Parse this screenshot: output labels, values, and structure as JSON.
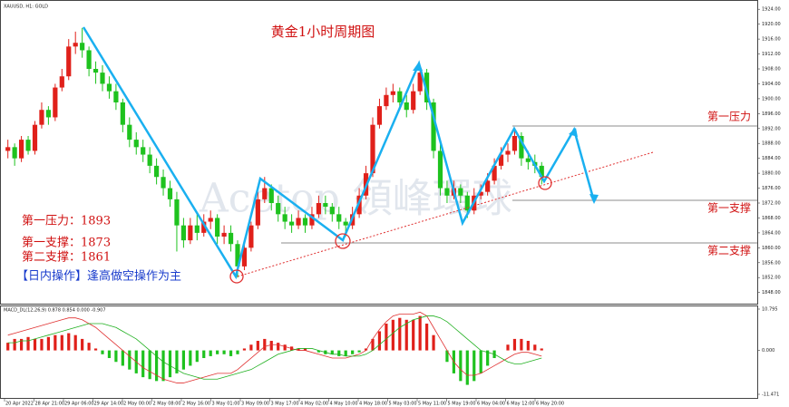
{
  "chart_data": {
    "type": "candlestick",
    "header": "XAUUSD, H1: GOLD",
    "title": "黄金1小时周期图",
    "notes": [
      "第一压力：1893",
      "第一支撑：1873",
      "第二支撑：1861"
    ],
    "strategy": "【日内操作】逢高做空操作为主",
    "level_labels": [
      "第一压力",
      "第一支撑",
      "第二支撑"
    ],
    "watermark": "Acetop 領峰環球",
    "up_color": "#e0201a",
    "down_color": "#1ec21e",
    "ylim": [
      1845,
      1926
    ],
    "yticks": [
      {
        "value": 1848,
        "label": "1848.00"
      },
      {
        "value": 1852,
        "label": "1852.00"
      },
      {
        "value": 1856,
        "label": "1856.00"
      },
      {
        "value": 1860,
        "label": "1860.00"
      },
      {
        "value": 1864,
        "label": "1864.00"
      },
      {
        "value": 1868,
        "label": "1868.00"
      },
      {
        "value": 1872,
        "label": "1872.00"
      },
      {
        "value": 1876,
        "label": "1876.00"
      },
      {
        "value": 1880,
        "label": "1880.00"
      },
      {
        "value": 1884,
        "label": "1884.00"
      },
      {
        "value": 1888,
        "label": "1888.00"
      },
      {
        "value": 1892,
        "label": "1892.00"
      },
      {
        "value": 1896,
        "label": "1896.00"
      },
      {
        "value": 1900,
        "label": "1900.00"
      },
      {
        "value": 1904,
        "label": "1904.00"
      },
      {
        "value": 1908,
        "label": "1908.00"
      },
      {
        "value": 1912,
        "label": "1912.00"
      },
      {
        "value": 1916,
        "label": "1916.00"
      },
      {
        "value": 1920,
        "label": "1920.00"
      },
      {
        "value": 1924,
        "label": "1924.00"
      }
    ],
    "xlabels": [
      "20 Apr 2022",
      "28 Apr 21:00",
      "29 Apr 06:00",
      "29 Apr 14:00",
      "2 May 00:00",
      "2 May 08:00",
      "2 May 16:00",
      "3 May 01:00",
      "3 May 09:00",
      "3 May 17:00",
      "4 May 02:00",
      "4 May 10:00",
      "4 May 18:00",
      "5 May 03:00",
      "5 May 11:00",
      "5 May 19:00",
      "6 May 04:00",
      "6 May 12:00",
      "6 May 20:00"
    ],
    "candles": [
      [
        1886,
        1889,
        1884,
        1887
      ],
      [
        1887,
        1888,
        1882,
        1884
      ],
      [
        1884,
        1890,
        1883,
        1889
      ],
      [
        1889,
        1890,
        1885,
        1886
      ],
      [
        1886,
        1894,
        1885,
        1893
      ],
      [
        1893,
        1899,
        1892,
        1897
      ],
      [
        1897,
        1898,
        1893,
        1895
      ],
      [
        1895,
        1904,
        1894,
        1903
      ],
      [
        1903,
        1908,
        1902,
        1906
      ],
      [
        1906,
        1916,
        1905,
        1914
      ],
      [
        1914,
        1918,
        1912,
        1915
      ],
      [
        1915,
        1919,
        1911,
        1913
      ],
      [
        1913,
        1914,
        1906,
        1908
      ],
      [
        1908,
        1910,
        1904,
        1907
      ],
      [
        1907,
        1909,
        1902,
        1904
      ],
      [
        1904,
        1906,
        1900,
        1902
      ],
      [
        1902,
        1904,
        1897,
        1899
      ],
      [
        1899,
        1900,
        1891,
        1893
      ],
      [
        1893,
        1895,
        1887,
        1889
      ],
      [
        1889,
        1891,
        1885,
        1887
      ],
      [
        1887,
        1889,
        1883,
        1885
      ],
      [
        1885,
        1887,
        1880,
        1882
      ],
      [
        1882,
        1884,
        1877,
        1879
      ],
      [
        1879,
        1881,
        1874,
        1876
      ],
      [
        1876,
        1878,
        1871,
        1873
      ],
      [
        1873,
        1875,
        1859,
        1866
      ],
      [
        1866,
        1868,
        1860,
        1862
      ],
      [
        1862,
        1868,
        1861,
        1866
      ],
      [
        1866,
        1869,
        1862,
        1864
      ],
      [
        1864,
        1869,
        1863,
        1867
      ],
      [
        1867,
        1870,
        1865,
        1868
      ],
      [
        1868,
        1869,
        1861,
        1863
      ],
      [
        1863,
        1866,
        1861,
        1864
      ],
      [
        1864,
        1866,
        1859,
        1861
      ],
      [
        1861,
        1862,
        1852,
        1855
      ],
      [
        1855,
        1861,
        1854,
        1860
      ],
      [
        1860,
        1867,
        1859,
        1866
      ],
      [
        1866,
        1875,
        1865,
        1873
      ],
      [
        1873,
        1879,
        1872,
        1876
      ],
      [
        1876,
        1877,
        1870,
        1872
      ],
      [
        1872,
        1874,
        1867,
        1869
      ],
      [
        1869,
        1871,
        1865,
        1867
      ],
      [
        1867,
        1869,
        1864,
        1866
      ],
      [
        1866,
        1870,
        1865,
        1868
      ],
      [
        1868,
        1869,
        1864,
        1866
      ],
      [
        1866,
        1871,
        1865,
        1869
      ],
      [
        1869,
        1874,
        1868,
        1872
      ],
      [
        1872,
        1874,
        1869,
        1871
      ],
      [
        1871,
        1872,
        1867,
        1869
      ],
      [
        1869,
        1871,
        1865,
        1867
      ],
      [
        1867,
        1868,
        1863,
        1866
      ],
      [
        1866,
        1871,
        1865,
        1869
      ],
      [
        1869,
        1876,
        1868,
        1874
      ],
      [
        1874,
        1882,
        1873,
        1880
      ],
      [
        1880,
        1895,
        1879,
        1893
      ],
      [
        1893,
        1900,
        1892,
        1898
      ],
      [
        1898,
        1903,
        1897,
        1901
      ],
      [
        1901,
        1904,
        1899,
        1902
      ],
      [
        1902,
        1903,
        1897,
        1899
      ],
      [
        1899,
        1901,
        1895,
        1897
      ],
      [
        1897,
        1904,
        1896,
        1902
      ],
      [
        1902,
        1909,
        1901,
        1907
      ],
      [
        1907,
        1908,
        1897,
        1899
      ],
      [
        1899,
        1900,
        1884,
        1886
      ],
      [
        1886,
        1888,
        1874,
        1876
      ],
      [
        1876,
        1878,
        1872,
        1874
      ],
      [
        1874,
        1878,
        1873,
        1876
      ],
      [
        1876,
        1877,
        1872,
        1874
      ],
      [
        1874,
        1875,
        1868,
        1870
      ],
      [
        1870,
        1876,
        1869,
        1874
      ],
      [
        1874,
        1877,
        1873,
        1875
      ],
      [
        1875,
        1880,
        1874,
        1878
      ],
      [
        1878,
        1884,
        1877,
        1882
      ],
      [
        1882,
        1887,
        1881,
        1885
      ],
      [
        1885,
        1888,
        1883,
        1886
      ],
      [
        1886,
        1892,
        1885,
        1890
      ],
      [
        1890,
        1891,
        1882,
        1884
      ],
      [
        1884,
        1886,
        1881,
        1883
      ],
      [
        1883,
        1885,
        1880,
        1882
      ],
      [
        1882,
        1883,
        1877,
        1879
      ]
    ],
    "macd": {
      "label": "MACD_DL(12,26,9) 0.878 0.854 0.000 -0.907",
      "ylim": [
        -11.471,
        10.795
      ],
      "yticks": [
        {
          "value": 10.795,
          "label": "10.795"
        },
        {
          "value": 0,
          "label": "0.000"
        },
        {
          "value": -11.471,
          "label": "-11.471"
        }
      ],
      "histogram": [
        2,
        3,
        3,
        3.5,
        3,
        3,
        3.5,
        4,
        4,
        4.5,
        4,
        3,
        2,
        0.5,
        -1,
        -2,
        -3,
        -4,
        -5,
        -6,
        -7,
        -7.5,
        -8,
        -8,
        -7,
        -6,
        -5,
        -4,
        -3,
        -2,
        -1.5,
        -1,
        -1,
        -1.5,
        -1,
        0.5,
        1.5,
        2.5,
        3,
        2.5,
        2,
        1.5,
        1,
        0.5,
        0.5,
        0,
        -0.5,
        -1,
        -1,
        -1.5,
        -1.5,
        -1,
        -0.5,
        0.5,
        3,
        5,
        7,
        8,
        8.5,
        8,
        8,
        9,
        7,
        4,
        0,
        -3,
        -6,
        -8,
        -9,
        -8,
        -6,
        -4,
        -2,
        0,
        1.5,
        3,
        3,
        2.5,
        1.5,
        0.5
      ],
      "series": [
        {
          "name": "MACD",
          "color": "#e03030",
          "values": [
            4,
            4.5,
            5,
            5.5,
            6,
            6.5,
            7,
            7.5,
            8,
            8.5,
            8.5,
            8,
            7,
            6,
            4.5,
            3,
            1.5,
            0,
            -1.5,
            -3,
            -4.5,
            -5.5,
            -6.5,
            -7.5,
            -8,
            -8.5,
            -8.5,
            -8,
            -7.5,
            -7,
            -6.5,
            -6,
            -6,
            -6,
            -5,
            -3.5,
            -2,
            -0.5,
            1,
            1.5,
            1.5,
            1,
            0.5,
            0,
            0,
            -0.5,
            -1,
            -1.5,
            -2,
            -2,
            -2,
            -1.5,
            -1,
            0,
            3,
            5.5,
            7.5,
            9,
            9.5,
            9.5,
            9.5,
            10,
            9,
            6,
            3,
            0,
            -3,
            -5,
            -6.5,
            -6.5,
            -6,
            -5,
            -4,
            -3,
            -2,
            -1,
            -0.5,
            -0.5,
            -1,
            -1.5
          ]
        },
        {
          "name": "Signal",
          "color": "#20b020",
          "values": [
            2,
            2,
            2.5,
            2.5,
            3,
            3.5,
            4,
            4.5,
            5,
            5.5,
            6,
            6.5,
            7,
            7,
            7,
            6.5,
            6,
            5,
            4,
            3,
            1.5,
            0,
            -1.5,
            -3,
            -4,
            -5,
            -6,
            -6.5,
            -7,
            -7.5,
            -7.5,
            -7.5,
            -7,
            -6.5,
            -6,
            -5.5,
            -5,
            -4,
            -3,
            -2,
            -1,
            -0.5,
            0,
            0.5,
            0.5,
            0.5,
            0,
            -0.5,
            -1,
            -1,
            -1.5,
            -1.5,
            -1.5,
            -1,
            0,
            1.5,
            3,
            4.5,
            6,
            7,
            8,
            8.5,
            9,
            9,
            8.5,
            7.5,
            6,
            4.5,
            3,
            1.5,
            0,
            -0.5,
            -1,
            -2,
            -3,
            -3.5,
            -3.5,
            -3,
            -2.5,
            -2
          ]
        }
      ]
    }
  }
}
